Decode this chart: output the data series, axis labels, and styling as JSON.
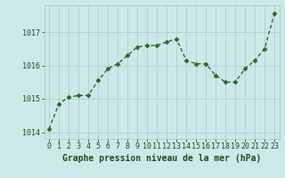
{
  "x": [
    0,
    1,
    2,
    3,
    4,
    5,
    6,
    7,
    8,
    9,
    10,
    11,
    12,
    13,
    14,
    15,
    16,
    17,
    18,
    19,
    20,
    21,
    22,
    23
  ],
  "y": [
    1014.1,
    1014.85,
    1015.05,
    1015.1,
    1015.1,
    1015.55,
    1015.9,
    1016.05,
    1016.3,
    1016.55,
    1016.6,
    1016.6,
    1016.7,
    1016.8,
    1016.15,
    1016.05,
    1016.05,
    1015.7,
    1015.5,
    1015.5,
    1015.9,
    1016.15,
    1016.5,
    1017.55
  ],
  "line_color": "#2d6a2d",
  "marker": "D",
  "marker_size": 2.5,
  "line_width": 1.0,
  "bg_color": "#cce8e8",
  "grid_color": "#aacaca",
  "xlabel": "Graphe pression niveau de la mer (hPa)",
  "xlabel_color": "#1a4f1a",
  "xlabel_fontsize": 7.0,
  "tick_color": "#1a4f1a",
  "tick_fontsize": 6.0,
  "ylim": [
    1013.8,
    1017.8
  ],
  "yticks": [
    1014,
    1015,
    1016,
    1017
  ],
  "xlim": [
    -0.5,
    23.5
  ],
  "xticks": [
    0,
    1,
    2,
    3,
    4,
    5,
    6,
    7,
    8,
    9,
    10,
    11,
    12,
    13,
    14,
    15,
    16,
    17,
    18,
    19,
    20,
    21,
    22,
    23
  ]
}
